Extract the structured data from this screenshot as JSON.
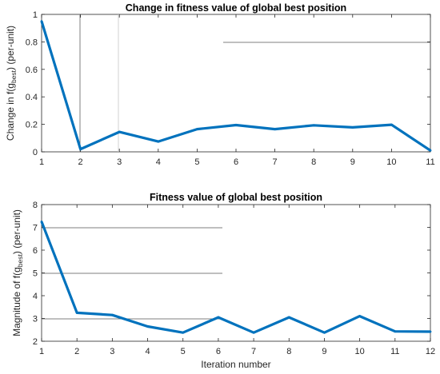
{
  "chart_data": [
    {
      "type": "line",
      "title": "Change in fitness value of global best position",
      "ylabel": {
        "pre": "Change in f(g",
        "sub": "best",
        "post": ") (per-unit)"
      },
      "xlabel": "",
      "x": [
        1,
        2,
        3,
        4,
        5,
        6,
        7,
        8,
        9,
        10,
        11
      ],
      "xlim": [
        1,
        11
      ],
      "ylim": [
        0,
        1
      ],
      "xticks": [
        1,
        2,
        3,
        4,
        5,
        6,
        7,
        8,
        9,
        10,
        11
      ],
      "yticks": [
        0,
        0.2,
        0.4,
        0.6,
        0.8,
        1
      ],
      "grid": false,
      "series": [
        {
          "values": [
            0.95,
            0.02,
            0.145,
            0.075,
            0.165,
            0.195,
            0.165,
            0.193,
            0.178,
            0.197,
            0.01
          ],
          "color": "#0072BD"
        }
      ]
    },
    {
      "type": "line",
      "title": "Fitness value of global best position",
      "ylabel": {
        "pre": "Magnitude of f(g",
        "sub": "best",
        "post": ") (per-unit)"
      },
      "xlabel": "Iteration number",
      "x": [
        1,
        2,
        3,
        4,
        5,
        6,
        7,
        8,
        9,
        10,
        11,
        12
      ],
      "xlim": [
        1,
        12
      ],
      "ylim": [
        2,
        8
      ],
      "xticks": [
        1,
        2,
        3,
        4,
        5,
        6,
        7,
        8,
        9,
        10,
        11,
        12
      ],
      "yticks": [
        2,
        3,
        4,
        5,
        6,
        7,
        8
      ],
      "grid": false,
      "series": [
        {
          "values": [
            7.25,
            3.25,
            3.15,
            2.65,
            2.38,
            3.05,
            2.38,
            3.05,
            2.38,
            3.1,
            2.43,
            2.42
          ],
          "color": "#0072BD"
        }
      ]
    }
  ]
}
